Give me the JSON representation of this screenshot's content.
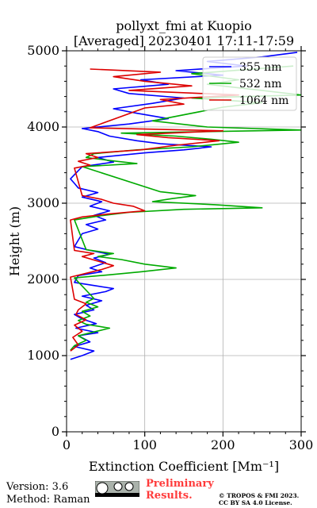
{
  "chart_data": {
    "type": "line",
    "title_line1": "pollyxt_fmi at Kuopio",
    "title_line2": "[Averaged] 20230401 17:11-17:59",
    "xlabel": "Extinction Coefficient [Mm⁻¹]",
    "ylabel": "Height (m)",
    "xlim": [
      0,
      300
    ],
    "ylim": [
      0,
      5000
    ],
    "xticks": [
      0,
      100,
      200,
      300
    ],
    "yticks": [
      0,
      1000,
      2000,
      3000,
      4000,
      5000
    ],
    "grid": true,
    "legend_position": "top-right",
    "series": [
      {
        "name": "355 nm",
        "color": "#0000ff",
        "points": [
          [
            5,
            950
          ],
          [
            20,
            1000
          ],
          [
            35,
            1060
          ],
          [
            10,
            1120
          ],
          [
            30,
            1180
          ],
          [
            15,
            1260
          ],
          [
            40,
            1300
          ],
          [
            12,
            1360
          ],
          [
            38,
            1420
          ],
          [
            20,
            1480
          ],
          [
            10,
            1540
          ],
          [
            35,
            1600
          ],
          [
            25,
            1660
          ],
          [
            45,
            1720
          ],
          [
            20,
            1780
          ],
          [
            50,
            1840
          ],
          [
            60,
            1880
          ],
          [
            35,
            1920
          ],
          [
            10,
            1960
          ],
          [
            15,
            2050
          ],
          [
            45,
            2100
          ],
          [
            30,
            2150
          ],
          [
            50,
            2220
          ],
          [
            35,
            2280
          ],
          [
            55,
            2330
          ],
          [
            30,
            2380
          ],
          [
            10,
            2430
          ],
          [
            20,
            2600
          ],
          [
            40,
            2660
          ],
          [
            25,
            2720
          ],
          [
            50,
            2780
          ],
          [
            35,
            2840
          ],
          [
            55,
            2900
          ],
          [
            30,
            2960
          ],
          [
            45,
            3020
          ],
          [
            20,
            3080
          ],
          [
            40,
            3140
          ],
          [
            15,
            3200
          ],
          [
            10,
            3260
          ],
          [
            5,
            3320
          ],
          [
            20,
            3480
          ],
          [
            60,
            3540
          ],
          [
            40,
            3600
          ],
          [
            100,
            3660
          ],
          [
            150,
            3700
          ],
          [
            185,
            3740
          ],
          [
            120,
            3780
          ],
          [
            90,
            3820
          ],
          [
            55,
            3880
          ],
          [
            40,
            3940
          ],
          [
            20,
            3980
          ],
          [
            80,
            4040
          ],
          [
            130,
            4110
          ],
          [
            90,
            4180
          ],
          [
            60,
            4240
          ],
          [
            110,
            4310
          ],
          [
            150,
            4380
          ],
          [
            80,
            4440
          ],
          [
            60,
            4500
          ],
          [
            130,
            4560
          ],
          [
            95,
            4620
          ],
          [
            200,
            4680
          ],
          [
            140,
            4740
          ],
          [
            230,
            4800
          ],
          [
            180,
            4860
          ],
          [
            250,
            4920
          ],
          [
            295,
            4980
          ]
        ]
      },
      {
        "name": "532 nm",
        "color": "#00aa00",
        "points": [
          [
            5,
            1070
          ],
          [
            10,
            1130
          ],
          [
            25,
            1200
          ],
          [
            15,
            1260
          ],
          [
            35,
            1310
          ],
          [
            55,
            1360
          ],
          [
            25,
            1410
          ],
          [
            15,
            1460
          ],
          [
            30,
            1520
          ],
          [
            20,
            1580
          ],
          [
            40,
            1640
          ],
          [
            25,
            1700
          ],
          [
            35,
            1750
          ],
          [
            10,
            2020
          ],
          [
            55,
            2060
          ],
          [
            95,
            2100
          ],
          [
            140,
            2150
          ],
          [
            100,
            2200
          ],
          [
            70,
            2260
          ],
          [
            40,
            2300
          ],
          [
            60,
            2340
          ],
          [
            25,
            2390
          ],
          [
            10,
            2780
          ],
          [
            40,
            2830
          ],
          [
            80,
            2880
          ],
          [
            150,
            2920
          ],
          [
            250,
            2940
          ],
          [
            190,
            2980
          ],
          [
            110,
            3020
          ],
          [
            135,
            3060
          ],
          [
            165,
            3100
          ],
          [
            120,
            3150
          ],
          [
            20,
            3480
          ],
          [
            90,
            3520
          ],
          [
            55,
            3560
          ],
          [
            25,
            3600
          ],
          [
            35,
            3650
          ],
          [
            90,
            3700
          ],
          [
            160,
            3740
          ],
          [
            220,
            3800
          ],
          [
            185,
            3840
          ],
          [
            140,
            3880
          ],
          [
            70,
            3920
          ],
          [
            300,
            3960
          ],
          [
            180,
            4000
          ],
          [
            110,
            4080
          ],
          [
            200,
            4260
          ],
          [
            250,
            4320
          ],
          [
            160,
            4380
          ],
          [
            300,
            4420
          ],
          [
            250,
            4480
          ],
          [
            180,
            4560
          ],
          [
            220,
            4620
          ],
          [
            160,
            4700
          ],
          [
            290,
            4800
          ]
        ]
      },
      {
        "name": "1064 nm",
        "color": "#dd0000",
        "points": [
          [
            5,
            1060
          ],
          [
            15,
            1140
          ],
          [
            8,
            1240
          ],
          [
            20,
            1320
          ],
          [
            10,
            1400
          ],
          [
            25,
            1470
          ],
          [
            12,
            1540
          ],
          [
            15,
            1600
          ],
          [
            25,
            1680
          ],
          [
            10,
            1740
          ],
          [
            5,
            2030
          ],
          [
            25,
            2080
          ],
          [
            45,
            2130
          ],
          [
            60,
            2180
          ],
          [
            40,
            2240
          ],
          [
            20,
            2300
          ],
          [
            35,
            2340
          ],
          [
            10,
            2380
          ],
          [
            5,
            2780
          ],
          [
            20,
            2820
          ],
          [
            55,
            2860
          ],
          [
            100,
            2900
          ],
          [
            85,
            2960
          ],
          [
            60,
            3000
          ],
          [
            45,
            3050
          ],
          [
            20,
            3100
          ],
          [
            10,
            3460
          ],
          [
            30,
            3500
          ],
          [
            15,
            3550
          ],
          [
            40,
            3600
          ],
          [
            25,
            3650
          ],
          [
            95,
            3700
          ],
          [
            140,
            3760
          ],
          [
            195,
            3820
          ],
          [
            130,
            3860
          ],
          [
            90,
            3900
          ],
          [
            200,
            3950
          ],
          [
            30,
            3990
          ],
          [
            100,
            4250
          ],
          [
            150,
            4300
          ],
          [
            120,
            4360
          ],
          [
            220,
            4420
          ],
          [
            80,
            4480
          ],
          [
            160,
            4540
          ],
          [
            100,
            4600
          ],
          [
            60,
            4660
          ],
          [
            120,
            4720
          ],
          [
            30,
            4760
          ]
        ]
      }
    ]
  },
  "footer": {
    "version_text": "Version: 3.6",
    "method_text": "Method: Raman",
    "preliminary_line1": "Preliminary",
    "preliminary_line2": "Results.",
    "copyright_line1": "© TROPOS & FMI 2023.",
    "copyright_line2": "CC BY SA 4.0 License."
  }
}
